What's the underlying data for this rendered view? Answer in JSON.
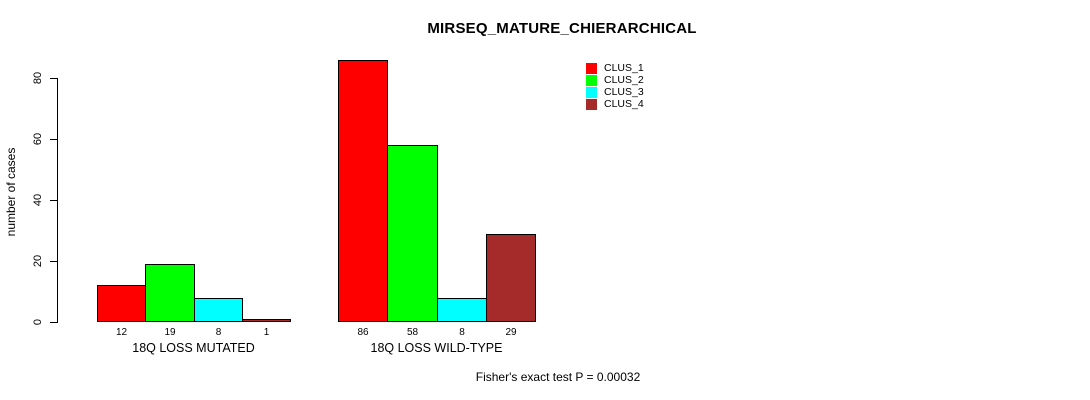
{
  "chart_data": {
    "type": "bar",
    "title": "MIRSEQ_MATURE_CHIERARCHICAL",
    "ylabel": "number of cases",
    "xlabel": "",
    "yticks": [
      0,
      20,
      40,
      60,
      80
    ],
    "ylim": [
      0,
      86
    ],
    "grid": false,
    "legend_position": "top-right",
    "categories": [
      "18Q LOSS MUTATED",
      "18Q LOSS WILD-TYPE"
    ],
    "series": [
      {
        "name": "CLUS_1",
        "color": "#ff0000",
        "values": [
          12,
          86
        ]
      },
      {
        "name": "CLUS_2",
        "color": "#00ff00",
        "values": [
          19,
          58
        ]
      },
      {
        "name": "CLUS_3",
        "color": "#00ffff",
        "values": [
          8,
          8
        ]
      },
      {
        "name": "CLUS_4",
        "color": "#a52a2a",
        "values": [
          1,
          29
        ]
      }
    ],
    "bar_value_labels": [
      [
        12,
        19,
        8,
        1
      ],
      [
        86,
        58,
        8,
        29
      ]
    ],
    "annotation": "Fisher's exact test P = 0.00032"
  },
  "colors": {
    "background": "#ffffff",
    "axis": "#000000",
    "text": "#000000"
  }
}
